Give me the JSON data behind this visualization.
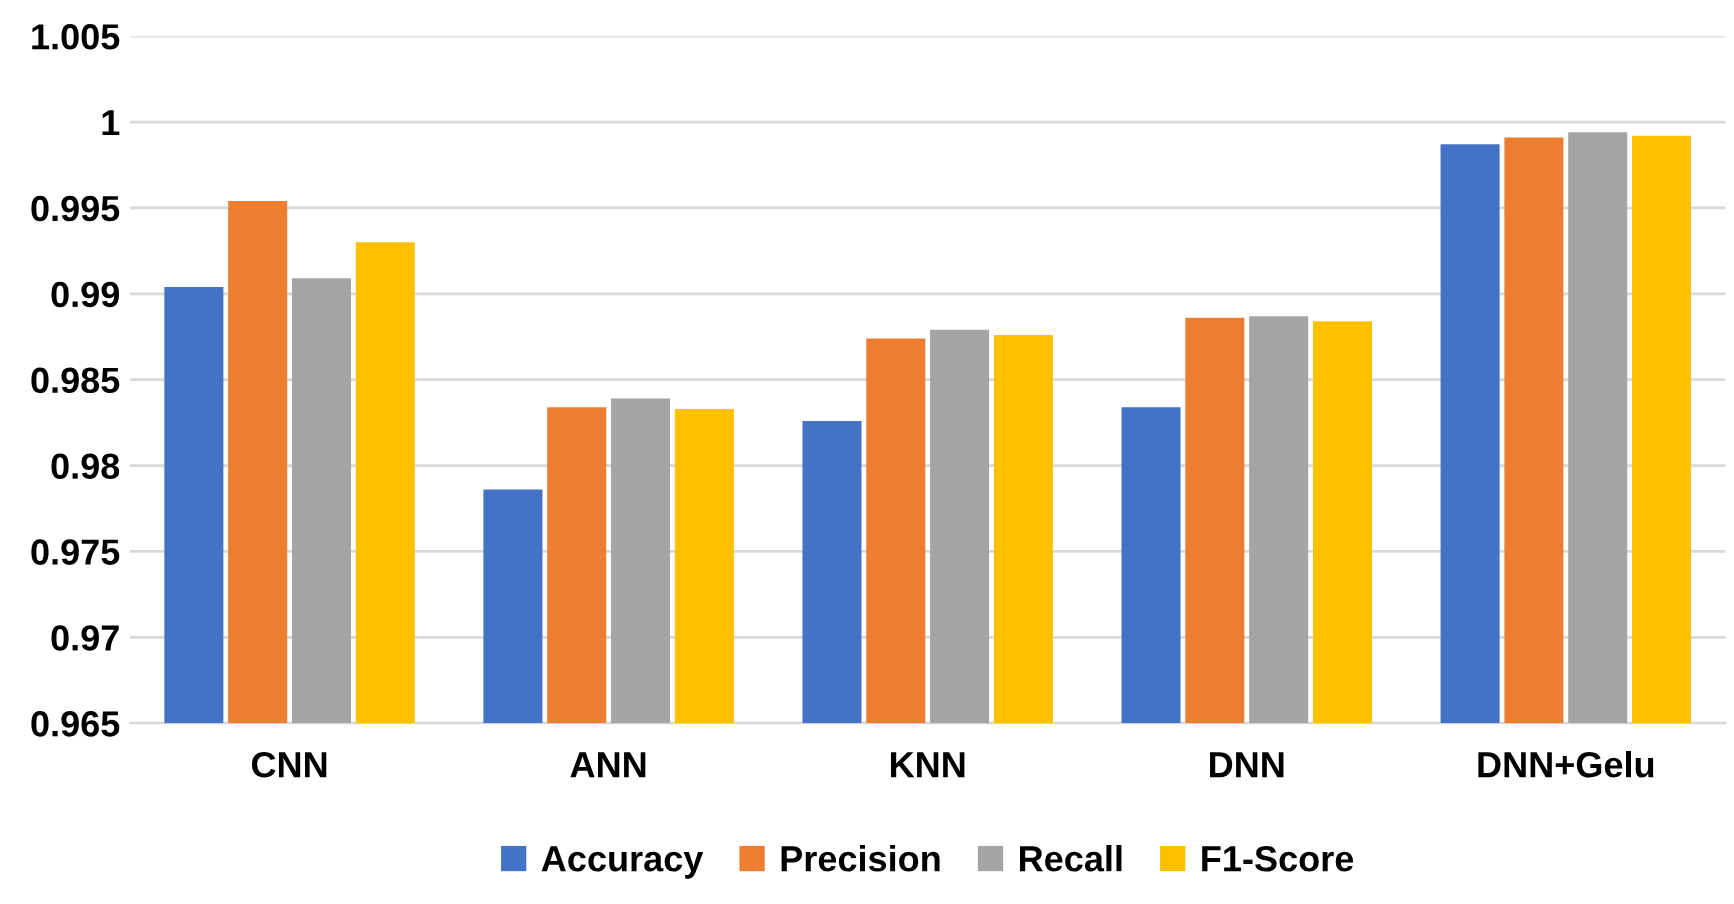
{
  "chart_data": {
    "type": "bar",
    "categories": [
      "CNN",
      "ANN",
      "KNN",
      "DNN",
      "DNN+Gelu"
    ],
    "series": [
      {
        "name": "Accuracy",
        "color": "#4472c4",
        "values": [
          0.9904,
          0.9786,
          0.9826,
          0.9834,
          0.9987
        ]
      },
      {
        "name": "Precision",
        "color": "#ed7d31",
        "values": [
          0.9954,
          0.9834,
          0.9874,
          0.9886,
          0.9991
        ]
      },
      {
        "name": "Recall",
        "color": "#a5a5a5",
        "values": [
          0.9909,
          0.9839,
          0.9879,
          0.9887,
          0.9994
        ]
      },
      {
        "name": "F1-Score",
        "color": "#ffc000",
        "values": [
          0.993,
          0.9833,
          0.9876,
          0.9884,
          0.9992
        ]
      }
    ],
    "ylim": [
      0.965,
      1.005
    ],
    "yticks": [
      0.965,
      0.97,
      0.975,
      0.98,
      0.985,
      0.99,
      0.995,
      {
        "value": 1.0,
        "label": "1"
      },
      1.005
    ],
    "grid": "y",
    "legend": "bottom"
  }
}
